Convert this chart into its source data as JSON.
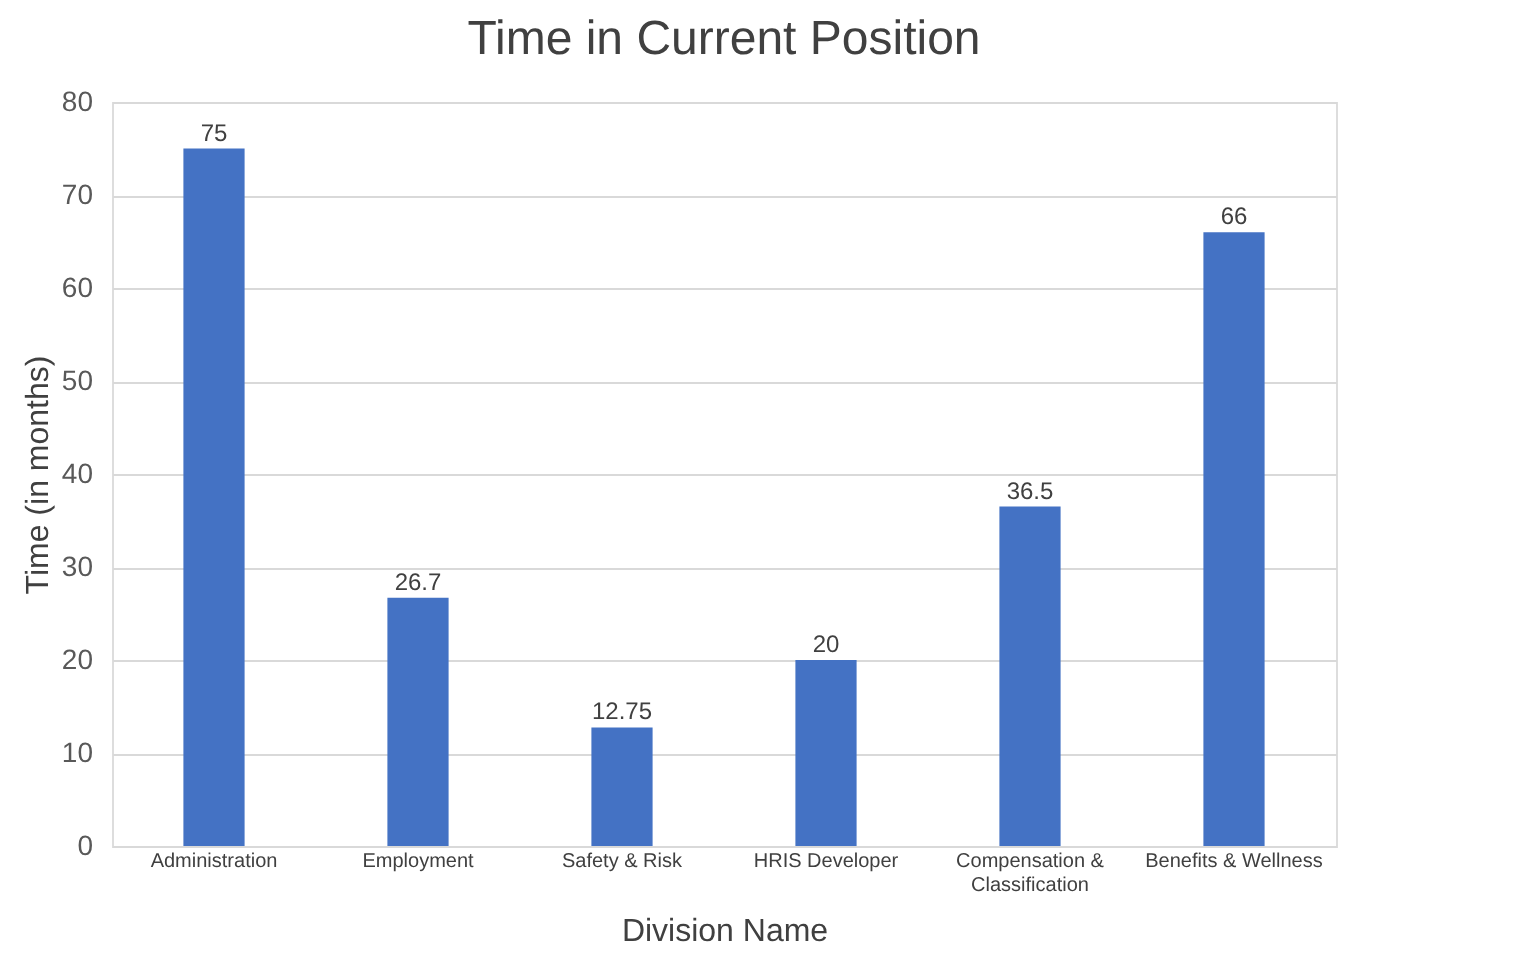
{
  "chart_data": {
    "type": "bar",
    "title": "Time in Current Position",
    "xlabel": "Division Name",
    "ylabel": "Time (in months)",
    "categories": [
      "Administration",
      "Employment",
      "Safety & Risk",
      "HRIS Developer",
      "Compensation & Classification",
      "Benefits & Wellness"
    ],
    "values": [
      75,
      26.7,
      12.75,
      20,
      36.5,
      66
    ],
    "color": "#4472c4",
    "ylim": [
      0,
      80
    ],
    "yticks": [
      0,
      10,
      20,
      30,
      40,
      50,
      60,
      70,
      80
    ],
    "grid": "y",
    "data_labels": true
  }
}
